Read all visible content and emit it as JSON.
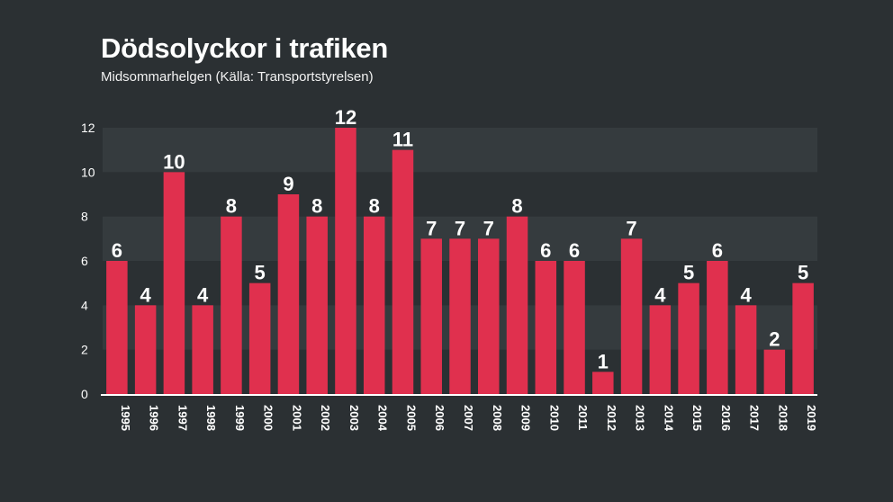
{
  "header": {
    "title": "Dödsolyckor i trafiken",
    "subtitle": "Midsommarhelgen (Källa: Transportstyrelsen)"
  },
  "chart_data": {
    "type": "bar",
    "title": "Dödsolyckor i trafiken",
    "subtitle": "Midsommarhelgen (Källa: Transportstyrelsen)",
    "categories": [
      "1995",
      "1996",
      "1997",
      "1998",
      "1999",
      "2000",
      "2001",
      "2002",
      "2003",
      "2004",
      "2005",
      "2006",
      "2007",
      "2008",
      "2009",
      "2010",
      "2011",
      "2012",
      "2013",
      "2014",
      "2015",
      "2016",
      "2017",
      "2018",
      "2019"
    ],
    "values": [
      6,
      4,
      10,
      4,
      8,
      5,
      9,
      8,
      12,
      8,
      11,
      7,
      7,
      7,
      8,
      6,
      6,
      1,
      7,
      4,
      5,
      6,
      4,
      2,
      5
    ],
    "yticks": [
      0,
      2,
      4,
      6,
      8,
      10,
      12
    ],
    "ylim": [
      0,
      12
    ],
    "xlabel": "",
    "ylabel": "",
    "grid": "alternating horizontal bands",
    "legend": "none",
    "colors": {
      "bar": "#e0304e",
      "background": "#2b3033",
      "band": "#353b3e",
      "axis": "#ffffff"
    }
  }
}
